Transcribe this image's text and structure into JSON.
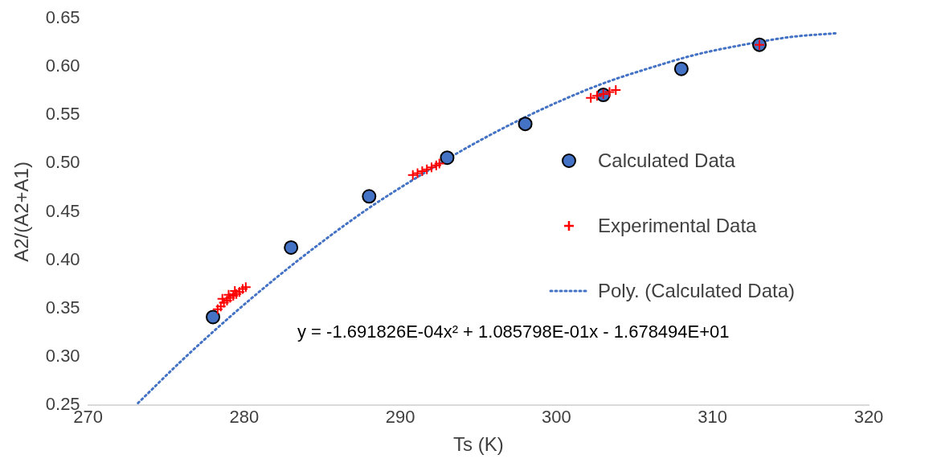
{
  "chart_data": {
    "type": "scatter",
    "xlabel": "Ts (K)",
    "ylabel": "A2/(A2+A1)",
    "xlim": [
      270,
      320
    ],
    "xticks": [
      270,
      280,
      290,
      300,
      310,
      320
    ],
    "ylim": [
      0.25,
      0.65
    ],
    "yticks": [
      {
        "value": 0.25,
        "label": "0.25"
      },
      {
        "value": 0.3,
        "label": "0.30"
      },
      {
        "value": 0.35,
        "label": "0.35"
      },
      {
        "value": 0.4,
        "label": "0.40"
      },
      {
        "value": 0.45,
        "label": "0.45"
      },
      {
        "value": 0.5,
        "label": "0.50"
      },
      {
        "value": 0.55,
        "label": "0.55"
      },
      {
        "value": 0.6,
        "label": "0.60"
      },
      {
        "value": 0.65,
        "label": "0.65"
      }
    ],
    "grid": false,
    "legend": "right",
    "annotations": [
      "y = -1.691826E-04x² + 1.085798E-01x - 1.678494E+01"
    ],
    "series": [
      {
        "name": "Calculated Data",
        "marker": "circle",
        "color": "#4472c4",
        "x": [
          278,
          283,
          288,
          293,
          298,
          303,
          308,
          313
        ],
        "values": [
          0.341,
          0.413,
          0.466,
          0.506,
          0.541,
          0.571,
          0.598,
          0.623
        ]
      },
      {
        "name": "Experimental Data",
        "marker": "cross",
        "color": "#ff0000",
        "x": [
          278.3,
          278.5,
          278.7,
          278.9,
          279.1,
          279.3,
          279.5,
          279.7,
          279.9,
          280.1,
          278.6,
          279.0,
          279.4,
          290.8,
          291.1,
          291.4,
          291.7,
          292.0,
          292.3,
          292.5,
          302.2,
          302.6,
          303.0,
          303.4,
          303.8,
          313
        ],
        "values": [
          0.349,
          0.352,
          0.356,
          0.358,
          0.361,
          0.363,
          0.365,
          0.367,
          0.37,
          0.372,
          0.36,
          0.364,
          0.368,
          0.488,
          0.49,
          0.492,
          0.494,
          0.496,
          0.498,
          0.5,
          0.568,
          0.57,
          0.572,
          0.574,
          0.576,
          0.623
        ]
      },
      {
        "name": "Poly. (Calculated Data)",
        "type": "line",
        "marker": "none",
        "line_style": "dotted",
        "color": "#4472c4",
        "x": [
          273.2,
          276,
          279,
          282,
          285,
          288,
          291,
          294,
          297,
          300,
          303,
          306,
          309,
          312,
          315,
          318
        ],
        "values": [
          0.252,
          0.296,
          0.34,
          0.381,
          0.419,
          0.454,
          0.485,
          0.514,
          0.54,
          0.563,
          0.583,
          0.599,
          0.613,
          0.623,
          0.631,
          0.635
        ]
      }
    ]
  }
}
